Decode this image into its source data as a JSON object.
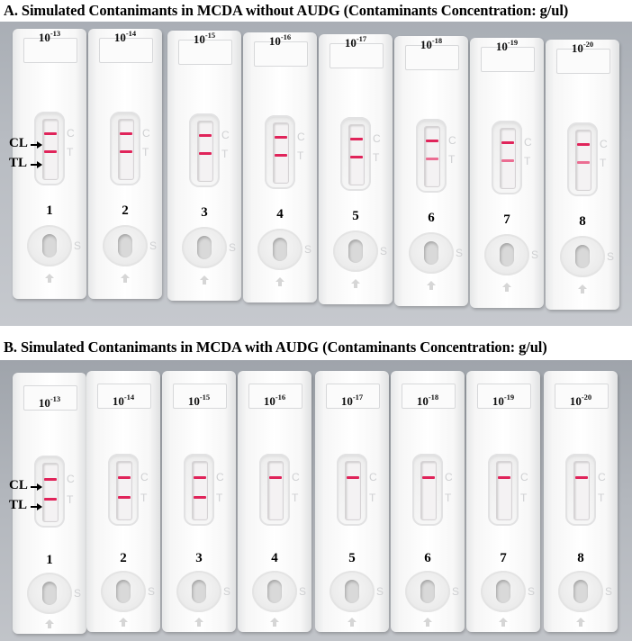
{
  "panels": [
    {
      "id": "A",
      "title": "A. Simulated Contanimants in MCDA without AUDG (Contaminants Concentration: g/ul)",
      "annotations": {
        "cl": "CL",
        "tl": "TL"
      },
      "control_letter": "C",
      "test_letter": "T",
      "sample_letter": "S",
      "strips": [
        {
          "number": "1",
          "base": "10",
          "exp": "-13",
          "control": "strong",
          "test": "strong"
        },
        {
          "number": "2",
          "base": "10",
          "exp": "-14",
          "control": "strong",
          "test": "strong"
        },
        {
          "number": "3",
          "base": "10",
          "exp": "-15",
          "control": "strong",
          "test": "strong"
        },
        {
          "number": "4",
          "base": "10",
          "exp": "-16",
          "control": "strong",
          "test": "strong"
        },
        {
          "number": "5",
          "base": "10",
          "exp": "-17",
          "control": "strong",
          "test": "strong"
        },
        {
          "number": "6",
          "base": "10",
          "exp": "-18",
          "control": "strong",
          "test": "faint"
        },
        {
          "number": "7",
          "base": "10",
          "exp": "-19",
          "control": "strong",
          "test": "faint"
        },
        {
          "number": "8",
          "base": "10",
          "exp": "-20",
          "control": "strong",
          "test": "faint"
        }
      ]
    },
    {
      "id": "B",
      "title": "B. Simulated Contanimants in MCDA with AUDG (Contaminants Concentration: g/ul)",
      "annotations": {
        "cl": "CL",
        "tl": "TL"
      },
      "control_letter": "C",
      "test_letter": "T",
      "sample_letter": "S",
      "strips": [
        {
          "number": "1",
          "base": "10",
          "exp": "-13",
          "control": "strong",
          "test": "strong"
        },
        {
          "number": "2",
          "base": "10",
          "exp": "-14",
          "control": "strong",
          "test": "strong"
        },
        {
          "number": "3",
          "base": "10",
          "exp": "-15",
          "control": "strong",
          "test": "strong"
        },
        {
          "number": "4",
          "base": "10",
          "exp": "-16",
          "control": "strong",
          "test": "none"
        },
        {
          "number": "5",
          "base": "10",
          "exp": "-17",
          "control": "strong",
          "test": "none"
        },
        {
          "number": "6",
          "base": "10",
          "exp": "-18",
          "control": "strong",
          "test": "none"
        },
        {
          "number": "7",
          "base": "10",
          "exp": "-19",
          "control": "strong",
          "test": "none"
        },
        {
          "number": "8",
          "base": "10",
          "exp": "-20",
          "control": "strong",
          "test": "none"
        }
      ]
    }
  ],
  "colors": {
    "band": "#e0245a",
    "band_faint": "#eb6d92",
    "strip": "#ffffff",
    "background": "#b3b7bd"
  }
}
